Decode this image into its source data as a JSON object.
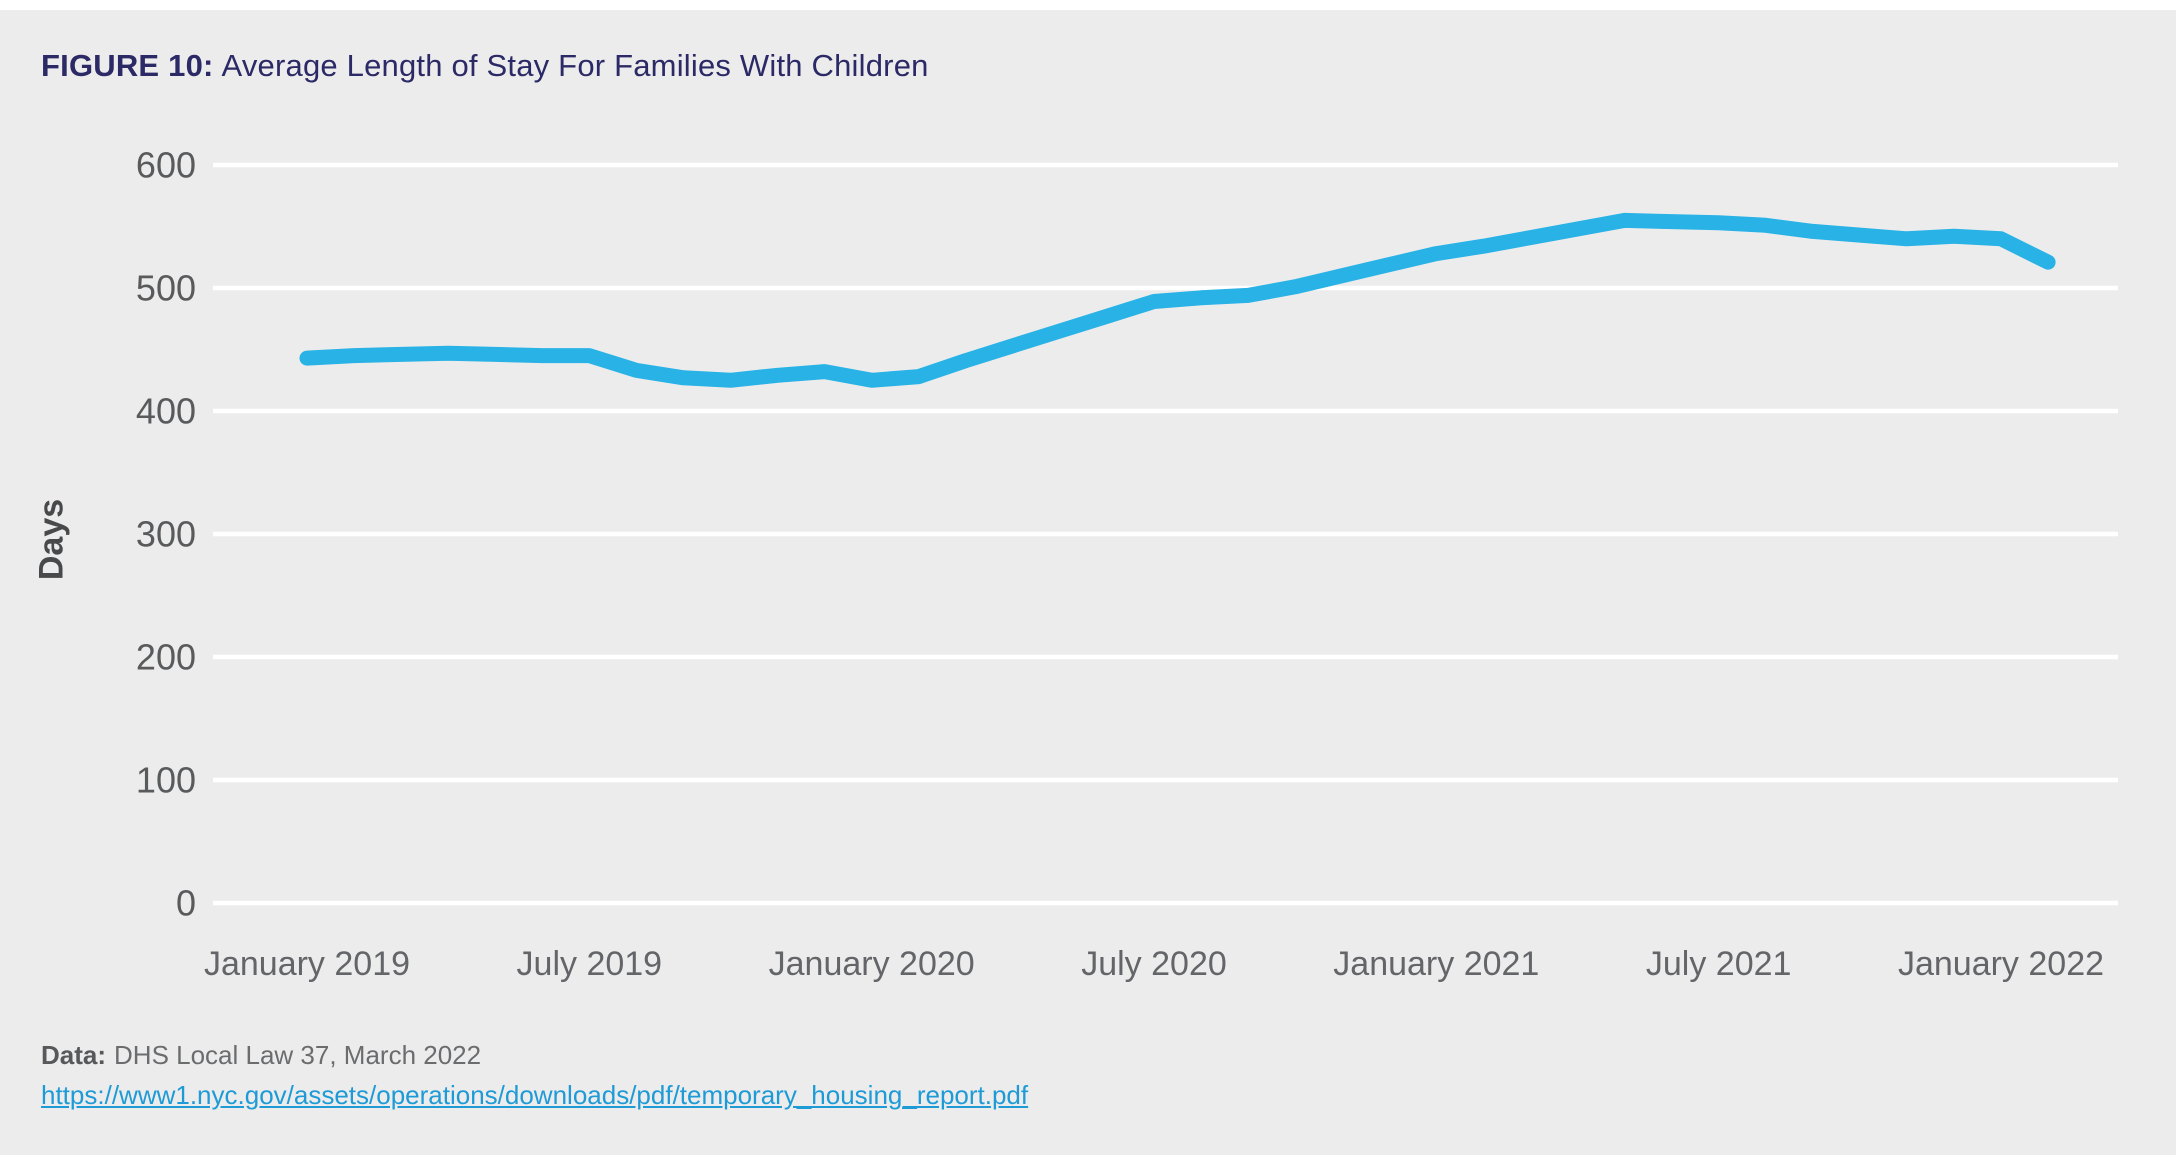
{
  "title": {
    "prefix": "FIGURE 10:",
    "text": "Average Length of Stay For Families With Children"
  },
  "footer": {
    "data_label": "Data:",
    "data_text": "DHS Local Law 37, March 2022",
    "link_text": "https://www1.nyc.gov/assets/operations/downloads/pdf/temporary_housing_report.pdf"
  },
  "colors": {
    "background": "#ECECEC",
    "gridline": "#FFFFFF",
    "line": "#29B2E6",
    "title": "#2B2966",
    "y_tick_text": "#595A5C",
    "x_tick_text": "#646568",
    "ylabel_text": "#48494B",
    "link": "#1E9BD7"
  },
  "chart_data": {
    "type": "line",
    "title": "Average Length of Stay For Families With Children",
    "ylabel": "Days",
    "xlabel": "",
    "ylim": [
      0,
      600
    ],
    "yticks": [
      0,
      100,
      200,
      300,
      400,
      500,
      600
    ],
    "grid": true,
    "legend": false,
    "x_start": "January 2019",
    "x_end": "February 2022",
    "x_interval": "monthly",
    "xtick_labels": [
      "January 2019",
      "July 2019",
      "January 2020",
      "July 2020",
      "January 2021",
      "July 2021",
      "January 2022"
    ],
    "xtick_month_index": [
      0,
      6,
      12,
      18,
      24,
      30,
      36
    ],
    "series": [
      {
        "name": "Average length of stay (days)",
        "values": [
          443,
          445,
          446,
          447,
          446,
          445,
          445,
          433,
          427,
          425,
          429,
          432,
          425,
          428,
          441,
          453,
          465,
          477,
          489,
          492,
          494,
          501,
          510,
          519,
          528,
          534,
          541,
          548,
          555,
          554,
          553,
          551,
          546,
          543,
          540,
          542,
          540,
          521
        ]
      }
    ]
  }
}
